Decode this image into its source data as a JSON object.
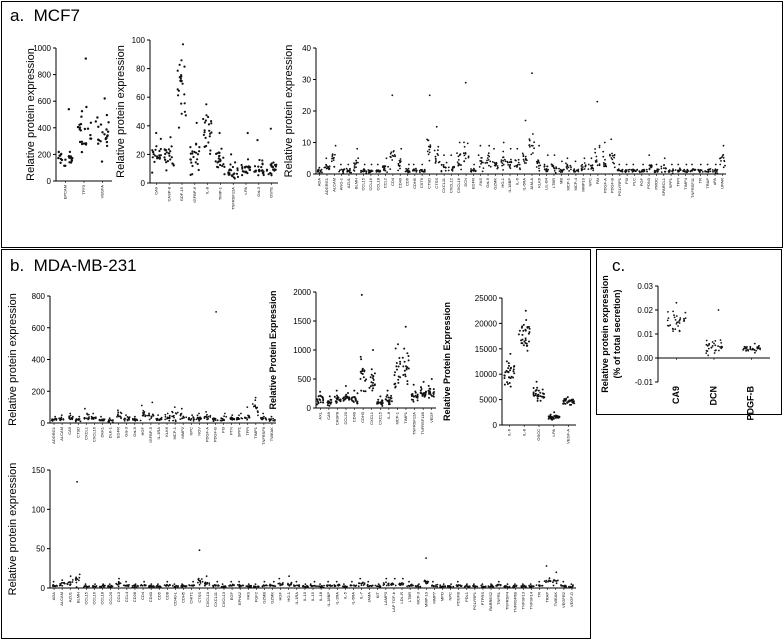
{
  "panels": {
    "a": {
      "letter": "a.",
      "title": "MCF7"
    },
    "b": {
      "letter": "b.",
      "title": "MDA-MB-231"
    },
    "c": {
      "letter": "c."
    }
  },
  "chart_data": [
    {
      "id": "a1",
      "panel": "a",
      "type": "scatter",
      "ylabel": "Relative protein expression",
      "ylim": [
        0,
        1000
      ],
      "yticks": [
        0,
        200,
        400,
        600,
        800,
        1000
      ],
      "categories": [
        "EPCAM",
        "TFF3",
        "VEGFA"
      ],
      "center": [
        150,
        380,
        350
      ],
      "spread": [
        60,
        130,
        110
      ],
      "max": [
        540,
        920,
        620
      ]
    },
    {
      "id": "a2",
      "panel": "a",
      "type": "scatter",
      "ylabel": "Relative protein expression",
      "ylim": [
        0,
        100
      ],
      "yticks": [
        0,
        20,
        40,
        60,
        80,
        100
      ],
      "categories": [
        "CA9",
        "CASP-8",
        "GDF-15",
        "IGFBP-6",
        "IL-8",
        "TIMP-1",
        "TNFRSF12A",
        "t-PA",
        "Gal-3",
        "OSTE"
      ],
      "center": [
        20,
        18,
        65,
        20,
        35,
        15,
        8,
        10,
        10,
        10
      ],
      "spread": [
        8,
        7,
        18,
        9,
        12,
        7,
        4,
        4,
        4,
        4
      ],
      "max": [
        35,
        32,
        97,
        42,
        55,
        35,
        20,
        35,
        30,
        38
      ]
    },
    {
      "id": "a3",
      "panel": "a",
      "type": "scatter",
      "ylabel": "Relative protein expression",
      "ylim": [
        0,
        40
      ],
      "yticks": [
        0,
        10,
        20,
        30,
        40
      ],
      "categories": [
        "ADA",
        "ADGRG1",
        "ALCAM",
        "ANG-1",
        "AZU1",
        "BLMH",
        "CCL15",
        "CCL16",
        "CCL18",
        "CCL2",
        "CD4",
        "CD40",
        "CD6",
        "CDH5",
        "CST6",
        "CTSD",
        "CTSS",
        "CXCL11",
        "CXCL12",
        "CXCL16",
        "DCN",
        "EGFR",
        "FAS",
        "Gal-9",
        "GZMK",
        "HO-1",
        "IL-18BP",
        "IL-6",
        "IL-6RA",
        "JAM-A",
        "KLK6",
        "LIL-B4",
        "LTBR",
        "MB",
        "MCP-1",
        "MCP-4",
        "MMP10",
        "NPC",
        "PAI",
        "PDGF-A",
        "PDGF-B",
        "PGLYRP1",
        "PI3",
        "PLC",
        "PGF",
        "PON3",
        "PROC",
        "SPARCL1",
        "SPP1",
        "TFPI",
        "TIMP4",
        "TNFRSF11",
        "TR",
        "TRAP",
        "uPA",
        "UPAR"
      ],
      "center": [
        1,
        2,
        4,
        1,
        1,
        3,
        1,
        1,
        1,
        2,
        5,
        3,
        1,
        1,
        1,
        8,
        5,
        2,
        2,
        4,
        6,
        1,
        4,
        4,
        3,
        4,
        3,
        3,
        5,
        9,
        3,
        2,
        2,
        1,
        2,
        1,
        2,
        2,
        6,
        4,
        5,
        1,
        1,
        1,
        1,
        2,
        1,
        2,
        1,
        1,
        1,
        1,
        1,
        1,
        1,
        4
      ],
      "spread": [
        0.5,
        0.8,
        1.5,
        0.5,
        0.5,
        1.5,
        0.5,
        0.5,
        0.5,
        1,
        2.5,
        1.5,
        0.5,
        0.5,
        0.5,
        3,
        2.5,
        1,
        1,
        2,
        3,
        0.5,
        2,
        2,
        1.5,
        2,
        1.5,
        1.5,
        2,
        3,
        1.5,
        1,
        1,
        0.5,
        1,
        0.5,
        1,
        1,
        3,
        2,
        2,
        0.5,
        0.5,
        0.5,
        0.5,
        1,
        0.5,
        1,
        0.5,
        0.5,
        0.5,
        0.5,
        0.5,
        0.5,
        0.5,
        1.5
      ],
      "max": [
        2,
        5,
        9,
        3,
        3,
        8,
        3,
        3,
        3,
        5,
        25,
        8,
        3,
        3,
        3,
        25,
        15,
        6,
        6,
        10,
        29,
        3,
        9,
        9,
        8,
        10,
        8,
        8,
        17,
        32,
        9,
        6,
        6,
        4,
        5,
        4,
        5,
        5,
        23,
        10,
        11,
        3,
        3,
        3,
        3,
        6,
        3,
        5,
        3,
        3,
        3,
        3,
        3,
        3,
        3,
        9
      ]
    },
    {
      "id": "b1",
      "panel": "b",
      "type": "scatter",
      "ylabel": "Relative protein expression",
      "ylim": [
        0,
        800
      ],
      "yticks": [
        0,
        200,
        400,
        600,
        800
      ],
      "categories": [
        "ADGRG1",
        "ALCAM",
        "CA9",
        "CTSD",
        "CXCL1",
        "CXCL16",
        "DKK1",
        "DLK-1",
        "EGFR",
        "Gal-3",
        "Gal-9",
        "HGF",
        "IGFBP-5",
        "IL-1RA",
        "KLK6",
        "MCP-1",
        "MMP2",
        "NPC",
        "NOV",
        "PDGF-A",
        "PDGF-B",
        "PI3",
        "PTN",
        "SPP1",
        "TFPI",
        "TIMP1",
        "TNFRSF9",
        "TWEAK"
      ],
      "center": [
        20,
        25,
        30,
        20,
        40,
        30,
        20,
        15,
        40,
        25,
        20,
        60,
        40,
        25,
        30,
        50,
        40,
        25,
        30,
        35,
        25,
        30,
        25,
        30,
        35,
        100,
        30,
        20
      ],
      "spread": [
        8,
        10,
        12,
        8,
        20,
        12,
        8,
        6,
        20,
        10,
        8,
        25,
        18,
        10,
        12,
        25,
        18,
        10,
        12,
        15,
        10,
        12,
        10,
        12,
        15,
        30,
        12,
        8
      ],
      "max": [
        40,
        50,
        60,
        40,
        90,
        60,
        40,
        30,
        80,
        50,
        40,
        110,
        130,
        50,
        60,
        100,
        90,
        50,
        60,
        70,
        700,
        60,
        50,
        60,
        100,
        160,
        60,
        40
      ]
    },
    {
      "id": "b2",
      "panel": "b",
      "type": "scatter",
      "ylabel": "Relative Protein Expression",
      "ylim": [
        0,
        2000
      ],
      "yticks": [
        0,
        500,
        1000,
        1500,
        2000
      ],
      "categories": [
        "AXL",
        "CA9",
        "CASP8",
        "CCL20",
        "CD40",
        "CDH3",
        "CXCL1",
        "CXCL5",
        "IL-8",
        "MCP-1",
        "TIMP1",
        "TNFRSF12A",
        "TNFRSF11B",
        "VEGF"
      ],
      "center": [
        150,
        100,
        150,
        180,
        150,
        550,
        450,
        100,
        150,
        650,
        750,
        200,
        250,
        300
      ],
      "spread": [
        60,
        40,
        60,
        70,
        60,
        200,
        150,
        40,
        60,
        220,
        250,
        80,
        90,
        100
      ],
      "max": [
        280,
        200,
        300,
        380,
        300,
        1950,
        1000,
        200,
        300,
        1100,
        1400,
        400,
        450,
        500
      ]
    },
    {
      "id": "b3",
      "panel": "b",
      "type": "scatter",
      "ylabel": "Relative Protein Expression",
      "ylim": [
        0,
        25000
      ],
      "yticks": [
        0,
        5000,
        10000,
        15000,
        20000,
        25000
      ],
      "categories": [
        "IL-6",
        "IL-8",
        "OSCC",
        "t-PA",
        "VEGF-A"
      ],
      "center": [
        10000,
        17500,
        6000,
        1500,
        4500
      ],
      "spread": [
        2000,
        2500,
        1000,
        400,
        500
      ],
      "max": [
        14000,
        22500,
        8500,
        2500,
        5500
      ]
    },
    {
      "id": "b4",
      "panel": "b",
      "type": "scatter",
      "ylabel": "Relative protein expression",
      "ylim": [
        0,
        150
      ],
      "yticks": [
        0,
        50,
        100,
        150
      ],
      "categories": [
        "ADA",
        "ALCAM",
        "AZU1",
        "BLMH",
        "CCL15",
        "CCL16",
        "CCL18",
        "CCL20",
        "CCL3",
        "CCL4",
        "CD28",
        "CD4",
        "CD40",
        "CD5",
        "CD8",
        "CD40-L",
        "CDH5",
        "CHIT1",
        "CTSS",
        "CXCL10",
        "CXCL11",
        "CXCL13",
        "EGF",
        "EPHA2",
        "FAS",
        "FGF2",
        "GZMB",
        "GZMK",
        "HGF",
        "HO-1",
        "IL-1RA",
        "IL-10",
        "IL-15",
        "IL-18",
        "IL-18BP",
        "IL-2RA",
        "IL-5",
        "IL-6RA",
        "IL-7",
        "JAMA",
        "KIT",
        "LAMP3",
        "LAP TGF-b",
        "LDL-R",
        "LTBR",
        "MCP-3",
        "MMP-10",
        "MMP7",
        "MPO",
        "NPC",
        "PDGFB",
        "PDL1",
        "PGLYRP1",
        "PTPRS",
        "RARRES2",
        "TNFR1",
        "TNFRSF4",
        "TNFRSF6B",
        "TNFSF13",
        "TNFSF14",
        "TR",
        "TRAP",
        "TWEAK",
        "VEGFR2",
        "VEGF-D"
      ],
      "center": [
        3,
        5,
        6,
        10,
        2,
        2,
        2,
        2,
        5,
        3,
        2,
        3,
        2,
        2,
        3,
        2,
        2,
        3,
        10,
        5,
        3,
        2,
        3,
        3,
        2,
        2,
        3,
        3,
        5,
        5,
        3,
        2,
        3,
        2,
        3,
        3,
        2,
        3,
        5,
        3,
        2,
        5,
        5,
        5,
        3,
        2,
        8,
        3,
        2,
        2,
        3,
        2,
        2,
        2,
        2,
        3,
        2,
        2,
        2,
        2,
        3,
        10,
        8,
        3,
        2
      ],
      "spread": [
        1,
        2,
        3,
        5,
        1,
        1,
        1,
        1,
        2,
        1,
        1,
        1,
        1,
        1,
        1,
        1,
        1,
        1,
        5,
        2,
        1,
        1,
        1,
        1,
        1,
        1,
        1,
        1,
        2,
        2,
        1,
        1,
        1,
        1,
        1,
        1,
        1,
        1,
        2,
        1,
        1,
        2,
        2,
        2,
        1,
        1,
        3,
        1,
        1,
        1,
        1,
        1,
        1,
        1,
        1,
        1,
        1,
        1,
        1,
        1,
        1,
        4,
        3,
        1,
        1
      ],
      "max": [
        8,
        10,
        15,
        135,
        5,
        5,
        5,
        5,
        12,
        8,
        5,
        8,
        5,
        5,
        8,
        5,
        5,
        8,
        48,
        15,
        8,
        5,
        8,
        8,
        5,
        5,
        8,
        8,
        12,
        15,
        8,
        5,
        8,
        5,
        8,
        8,
        5,
        8,
        12,
        8,
        5,
        12,
        12,
        12,
        8,
        5,
        38,
        8,
        5,
        5,
        8,
        5,
        5,
        5,
        5,
        8,
        5,
        5,
        5,
        5,
        8,
        28,
        20,
        8,
        5
      ]
    },
    {
      "id": "c1",
      "panel": "c",
      "type": "scatter",
      "ylabel": "Relative protein expression",
      "ylabel2": "(% of total secretion)",
      "ylim": [
        -0.01,
        0.03
      ],
      "yticks": [
        -0.01,
        0.0,
        0.01,
        0.02,
        0.03
      ],
      "categories": [
        "CA9",
        "DCN",
        "PDGF-B"
      ],
      "center": [
        0.015,
        0.004,
        0.004
      ],
      "spread": [
        0.004,
        0.003,
        0.001
      ],
      "max": [
        0.023,
        0.02,
        0.006
      ]
    }
  ]
}
